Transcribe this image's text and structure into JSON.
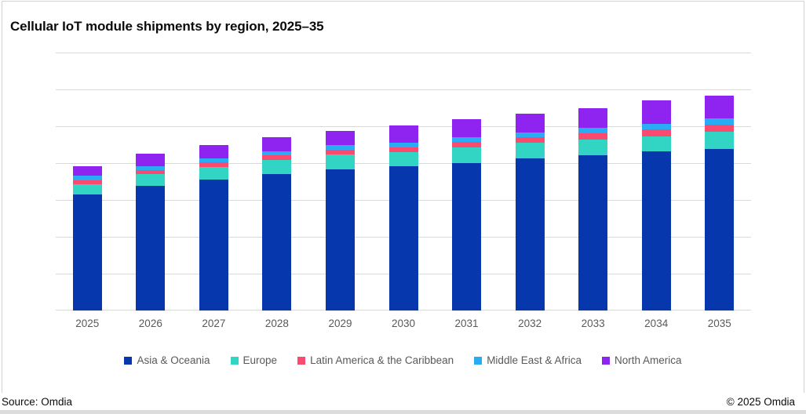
{
  "title": "Cellular IoT module shipments by region, 2025–35",
  "footer": {
    "source": "Source: Omdia",
    "copyright": "© 2025 Omdia"
  },
  "colors": {
    "asia_oceania": "#0637AC",
    "europe": "#32D4C4",
    "latin_america_caribbean": "#FA4A6F",
    "middle_east_africa": "#29ACF4",
    "north_america": "#8F23F0",
    "gridline": "#D9D9D9",
    "axis_text": "#595959",
    "title_text": "#0B0B0B"
  },
  "chart_data": {
    "type": "bar",
    "stacked": true,
    "title": "Cellular IoT module shipments by region, 2025–35",
    "categories": [
      "2025",
      "2026",
      "2027",
      "2028",
      "2029",
      "2030",
      "2031",
      "2032",
      "2033",
      "2034",
      "2035"
    ],
    "series": [
      {
        "name": "Asia & Oceania",
        "color": "#0637AC",
        "values": [
          315,
          338,
          356,
          370,
          384,
          391,
          401,
          412,
          422,
          431,
          438
        ]
      },
      {
        "name": "Europe",
        "color": "#32D4C4",
        "values": [
          27,
          32,
          33,
          38,
          39,
          38,
          41,
          44,
          42,
          42,
          47
        ]
      },
      {
        "name": "Latin America & the Caribbean",
        "color": "#FA4A6F",
        "values": [
          11,
          11,
          13,
          13,
          14,
          14,
          15,
          15,
          16,
          18,
          20
        ]
      },
      {
        "name": "Middle East & Africa",
        "color": "#29ACF4",
        "values": [
          12,
          10,
          10,
          11,
          11,
          13,
          14,
          13,
          15,
          16,
          16
        ]
      },
      {
        "name": "North America",
        "color": "#8F23F0",
        "values": [
          27,
          34,
          37,
          39,
          40,
          46,
          48,
          51,
          55,
          63,
          63
        ]
      }
    ],
    "totals_estimated": [
      392,
      425,
      449,
      471,
      488,
      502,
      519,
      535,
      550,
      570,
      584
    ],
    "xlabel": "",
    "ylabel": "",
    "ylim": [
      0,
      700
    ],
    "y_axis_labels_visible": false,
    "value_units": "estimated index units; y-axis is unlabeled in source image, each gridline interval ≈ 100",
    "grid": "horizontal gridlines every 100 units (8 lines incl. baseline)",
    "legend_position": "bottom"
  }
}
